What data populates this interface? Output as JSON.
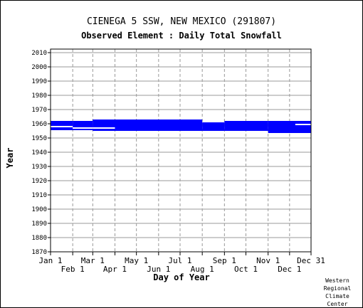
{
  "chart_data": {
    "type": "bar",
    "title": "CIENEGA 5 SSW, NEW MEXICO   (291807)",
    "subtitle": "Observed Element : Daily Total Snowfall",
    "xlabel": "Day of Year",
    "ylabel": "Year",
    "ylim": [
      1870,
      2010
    ],
    "xlim": [
      1,
      365
    ],
    "grid": true,
    "yticks": [
      2010,
      2000,
      1990,
      1980,
      1970,
      1960,
      1950,
      1940,
      1930,
      1920,
      1910,
      1900,
      1890,
      1880,
      1870
    ],
    "x_ticks_top_row": [
      {
        "label": "Jan 1",
        "day": 1
      },
      {
        "label": "Mar 1",
        "day": 60
      },
      {
        "label": "May 1",
        "day": 121
      },
      {
        "label": "Jul 1",
        "day": 182
      },
      {
        "label": "Sep 1",
        "day": 244
      },
      {
        "label": "Nov 1",
        "day": 305
      },
      {
        "label": "Dec 31",
        "day": 365
      }
    ],
    "x_ticks_bottom_row": [
      {
        "label": "Feb 1",
        "day": 32
      },
      {
        "label": "Apr 1",
        "day": 91
      },
      {
        "label": "Jun 1",
        "day": 152
      },
      {
        "label": "Aug 1",
        "day": 213
      },
      {
        "label": "Oct 1",
        "day": 274
      },
      {
        "label": "Dec 1",
        "day": 335
      }
    ],
    "series": [
      {
        "color": "#0000ff",
        "segments": [
          {
            "start_day": 1,
            "end_day": 32,
            "year_from": 1955.5,
            "year_to": 1962
          },
          {
            "start_day": 32,
            "end_day": 60,
            "year_from": 1955.5,
            "year_to": 1962
          },
          {
            "start_day": 60,
            "end_day": 213,
            "year_from": 1955,
            "year_to": 1963
          },
          {
            "start_day": 213,
            "end_day": 244,
            "year_from": 1955,
            "year_to": 1961
          },
          {
            "start_day": 244,
            "end_day": 305,
            "year_from": 1955,
            "year_to": 1962
          },
          {
            "start_day": 305,
            "end_day": 365,
            "year_from": 1953.5,
            "year_to": 1962
          }
        ],
        "gaps": [
          {
            "start_day": 1,
            "end_day": 32,
            "year": 1958
          },
          {
            "start_day": 32,
            "end_day": 60,
            "year": 1957
          },
          {
            "start_day": 60,
            "end_day": 91,
            "year": 1957
          },
          {
            "start_day": 343,
            "end_day": 365,
            "year": 1959.5
          }
        ]
      }
    ]
  },
  "credit": [
    "Western",
    "Regional",
    "Climate",
    "Center"
  ]
}
